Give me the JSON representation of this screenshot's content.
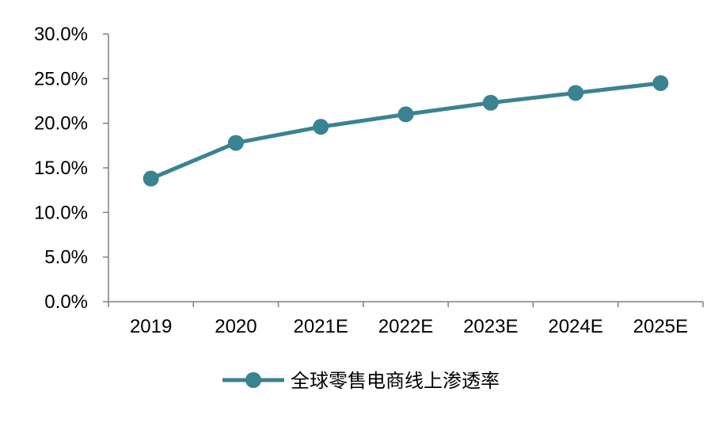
{
  "chart_data": {
    "type": "line",
    "categories": [
      "2019",
      "2020",
      "2021E",
      "2022E",
      "2023E",
      "2024E",
      "2025E"
    ],
    "series": [
      {
        "name": "全球零售电商线上渗透率",
        "values": [
          13.8,
          17.8,
          19.6,
          21.0,
          22.3,
          23.4,
          24.5
        ],
        "color": "#3a8390"
      }
    ],
    "ylim": [
      0,
      30
    ],
    "yticks": [
      0,
      5,
      10,
      15,
      20,
      25,
      30
    ],
    "ytick_labels": [
      "0.0%",
      "5.0%",
      "10.0%",
      "15.0%",
      "20.0%",
      "25.0%",
      "30.0%"
    ],
    "grid": false,
    "legend_position": "bottom-center",
    "axis_color": "#808080"
  }
}
